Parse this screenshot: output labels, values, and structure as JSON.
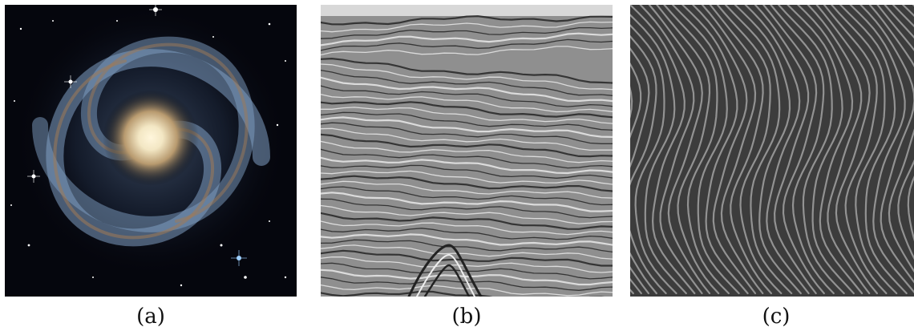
{
  "panels": [
    {
      "caption": "(a)"
    },
    {
      "caption": "(b)"
    },
    {
      "caption": "(c)"
    }
  ],
  "colors": {
    "galaxy_background": "#05060d",
    "galaxy_core": "#f3e7c4",
    "galaxy_arms": "#7f9fc3",
    "seismic_background": "#8f8f8f",
    "texture_background": "#3c3c3c",
    "texture_stripes": "#d9d9d9"
  }
}
